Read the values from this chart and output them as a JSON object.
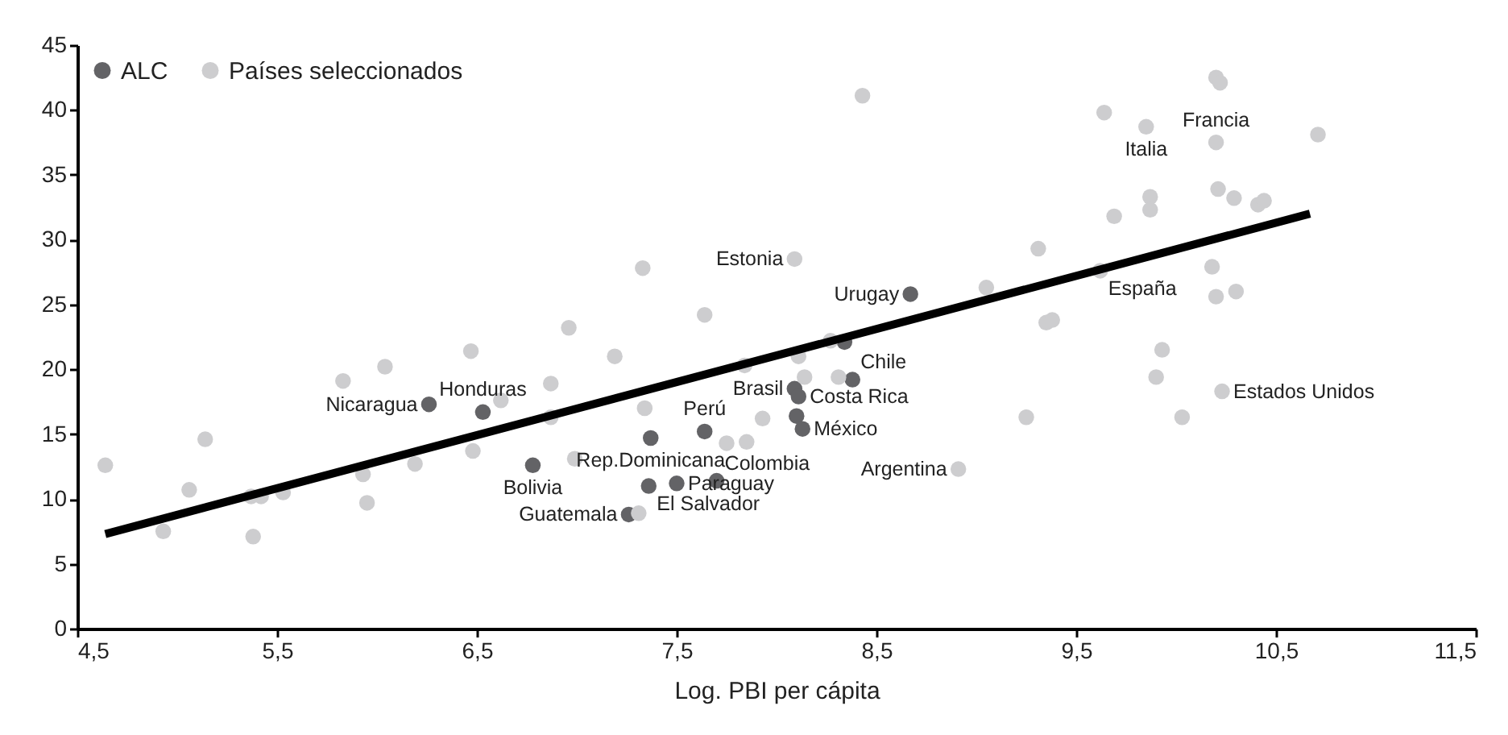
{
  "chart_data": {
    "type": "scatter",
    "xlabel": "Log. PBI per cápita",
    "xlim": [
      4.5,
      11.5
    ],
    "ylim": [
      0,
      45
    ],
    "xticks": [
      {
        "value": 4.5,
        "label": "4,5"
      },
      {
        "value": 5.5,
        "label": "5,5"
      },
      {
        "value": 6.5,
        "label": "6,5"
      },
      {
        "value": 7.5,
        "label": "7,5"
      },
      {
        "value": 8.5,
        "label": "8,5"
      },
      {
        "value": 9.5,
        "label": "9,5"
      },
      {
        "value": 10.5,
        "label": "10,5"
      },
      {
        "value": 11.5,
        "label": "11,5"
      }
    ],
    "yticks": [
      0,
      5,
      10,
      15,
      20,
      25,
      30,
      35,
      40,
      45
    ],
    "legend": "top left",
    "marker": "circle",
    "series": [
      {
        "name": "ALC",
        "color": "#636366",
        "x": [
          6.26,
          6.53,
          7.37,
          6.78,
          7.36,
          7.5,
          7.7,
          7.26,
          7.64,
          8.09,
          8.11,
          8.1,
          8.13,
          8.38,
          8.67,
          8.34
        ],
        "values": [
          17.3,
          16.7,
          14.7,
          12.6,
          11.0,
          11.2,
          11.4,
          8.8,
          15.2,
          18.5,
          17.9,
          16.4,
          15.4,
          19.2,
          25.8,
          22.1
        ]
      },
      {
        "name": "Países seleccionados",
        "color": "#cdcdcf",
        "x": [
          4.64,
          4.93,
          5.06,
          5.14,
          5.37,
          5.42,
          5.38,
          5.53,
          5.83,
          6.04,
          6.47,
          5.93,
          5.95,
          6.19,
          6.62,
          6.48,
          6.96,
          7.19,
          6.87,
          6.87,
          6.99,
          7.34,
          7.84,
          8.11,
          8.27,
          8.14,
          8.31,
          7.93,
          7.75,
          7.85,
          7.31,
          8.91,
          8.43,
          8.09,
          9.05,
          7.33,
          7.64,
          10.2,
          10.22,
          9.64,
          9.85,
          10.2,
          10.71,
          9.87,
          9.87,
          10.21,
          10.29,
          10.41,
          10.44,
          9.69,
          9.31,
          9.62,
          10.18,
          10.2,
          10.3,
          9.35,
          9.38,
          9.93,
          9.9,
          10.23,
          9.25,
          10.03
        ],
        "values": [
          12.6,
          7.5,
          10.7,
          14.6,
          10.2,
          10.2,
          7.1,
          10.5,
          19.1,
          20.2,
          21.4,
          11.9,
          9.7,
          12.7,
          17.6,
          13.7,
          23.2,
          21.0,
          18.9,
          16.3,
          13.1,
          17.0,
          20.3,
          21.0,
          22.2,
          19.4,
          19.4,
          16.2,
          14.3,
          14.4,
          8.9,
          12.3,
          41.1,
          28.5,
          26.3,
          27.8,
          24.2,
          42.5,
          42.1,
          39.8,
          38.7,
          37.5,
          38.1,
          33.3,
          32.3,
          33.9,
          33.2,
          32.7,
          33.0,
          31.8,
          29.3,
          27.6,
          27.9,
          25.6,
          26.0,
          23.6,
          23.8,
          21.5,
          19.4,
          18.3,
          16.3,
          16.3
        ]
      },
      {
        "type": "line",
        "color": "#000000",
        "marker": "none",
        "x": [
          4.64,
          10.67
        ],
        "values": [
          7.3,
          32.0
        ]
      }
    ],
    "annotations": [
      {
        "text": "Nicaragua",
        "x": 6.26,
        "y": 17.3
      },
      {
        "text": "Honduras",
        "x": 6.53,
        "y": 16.7
      },
      {
        "text": "Rep.Dominicana",
        "x": 7.37,
        "y": 14.7
      },
      {
        "text": "Bolivia",
        "x": 6.78,
        "y": 12.6
      },
      {
        "text": "El Salvador",
        "x": 7.36,
        "y": 11.0
      },
      {
        "text": "Paraguay",
        "x": 7.5,
        "y": 11.2
      },
      {
        "text": "Guatemala",
        "x": 7.26,
        "y": 8.8
      },
      {
        "text": "Colombia",
        "x": 7.7,
        "y": 11.4
      },
      {
        "text": "Perú",
        "x": 7.64,
        "y": 15.2
      },
      {
        "text": "Costa Rica",
        "x": 8.11,
        "y": 17.9
      },
      {
        "text": "Brasil",
        "x": 8.09,
        "y": 18.5
      },
      {
        "text": "Chile",
        "x": 8.38,
        "y": 19.2
      },
      {
        "text": "México",
        "x": 8.13,
        "y": 15.4
      },
      {
        "text": "Argentina",
        "x": 8.91,
        "y": 12.3
      },
      {
        "text": "Estados Unidos",
        "x": 10.23,
        "y": 18.3
      },
      {
        "text": "Urugay",
        "x": 8.67,
        "y": 25.8
      },
      {
        "text": "Estonia",
        "x": 8.09,
        "y": 28.5
      },
      {
        "text": "Italia",
        "x": 9.85,
        "y": 38.7
      },
      {
        "text": "Francia",
        "x": 10.2,
        "y": 37.5
      },
      {
        "text": "España",
        "x": 9.62,
        "y": 27.6
      }
    ]
  }
}
